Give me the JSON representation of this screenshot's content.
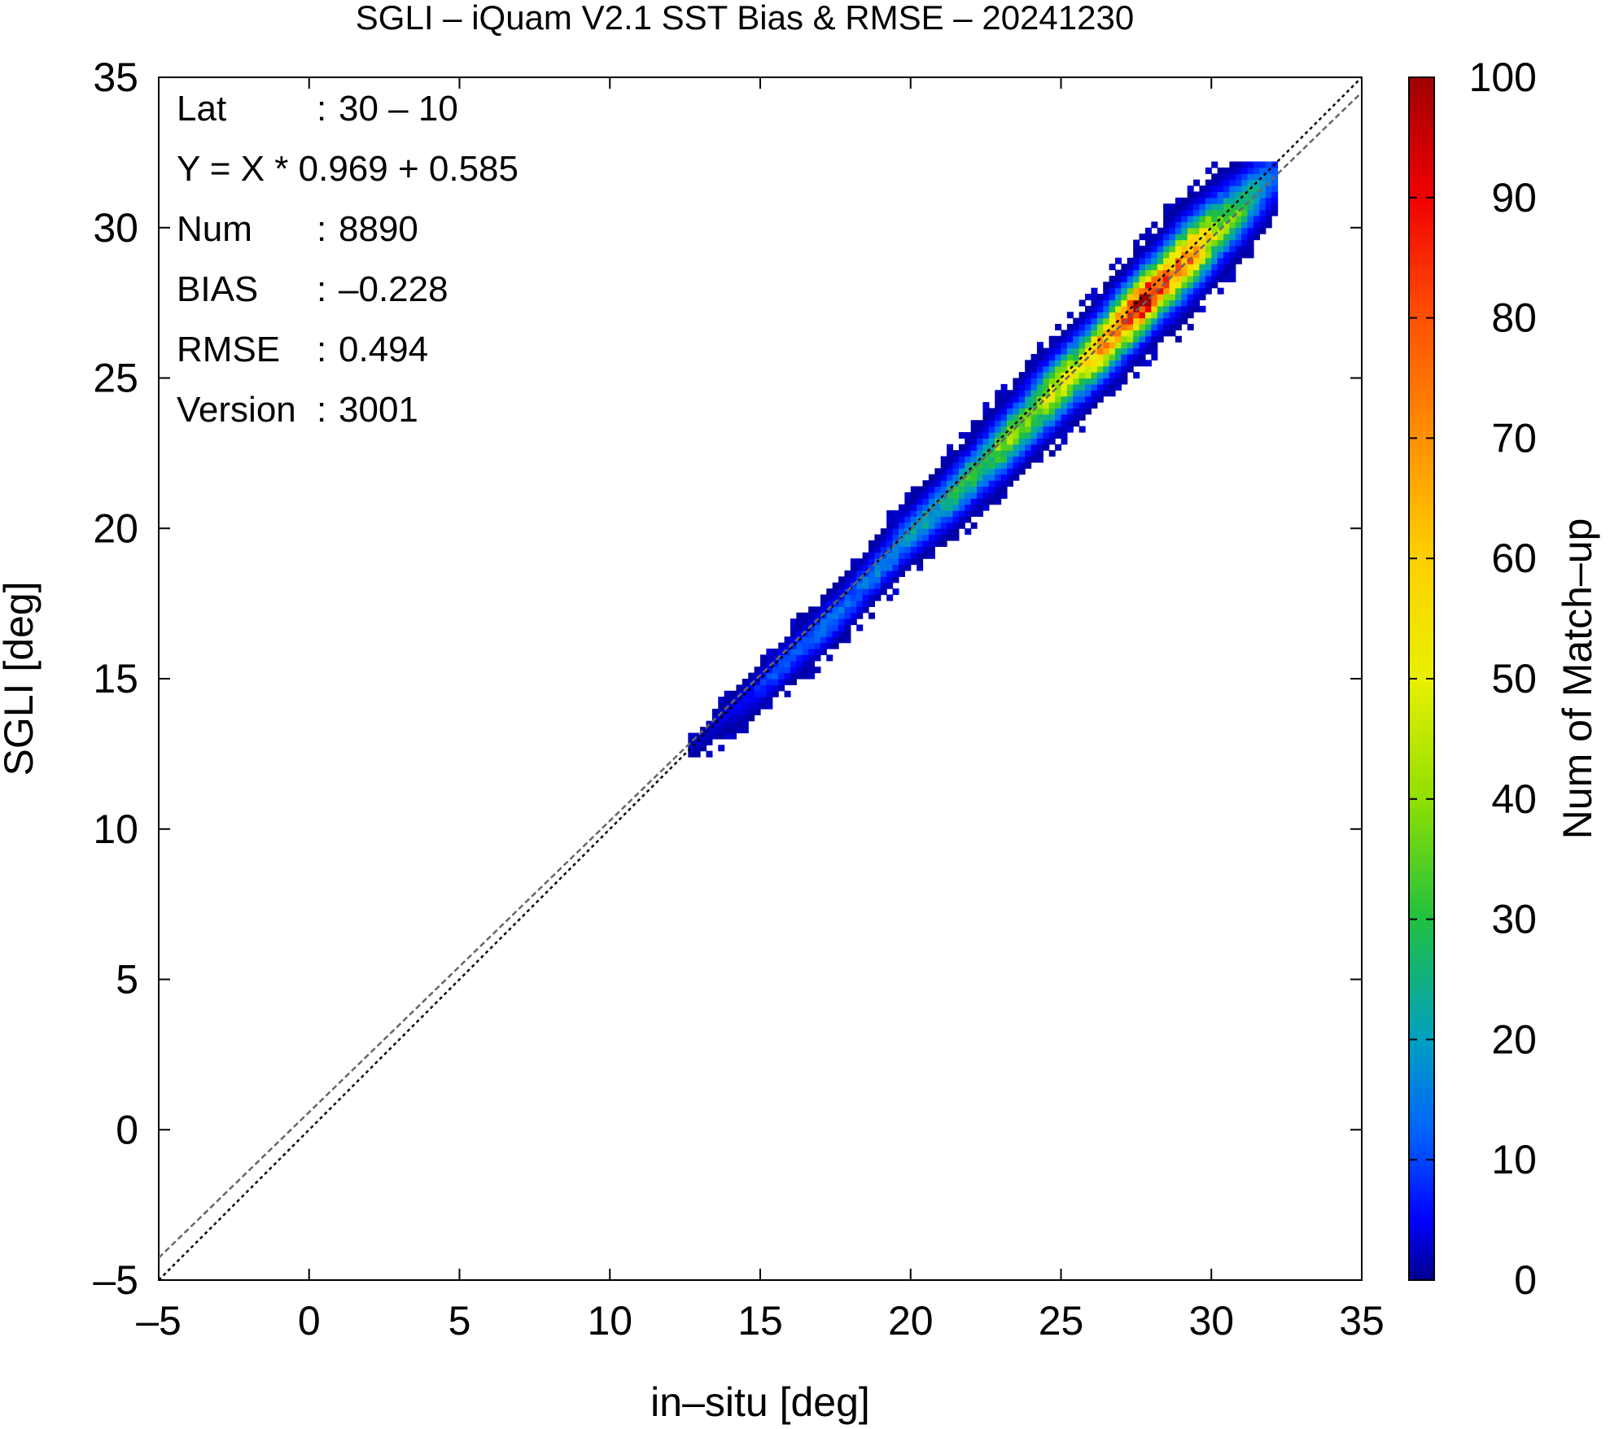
{
  "chart_data": {
    "type": "heatmap",
    "title": "SGLI – iQuam V2.1 SST Bias & RMSE  – 20241230",
    "xlabel": "in–situ [deg]",
    "ylabel": "SGLI [deg]",
    "xlim": [
      -5,
      35
    ],
    "ylim": [
      -5,
      35
    ],
    "xticks": [
      "–5",
      "0",
      "5",
      "10",
      "15",
      "20",
      "25",
      "30",
      "35"
    ],
    "yticks": [
      "–5",
      "0",
      "5",
      "10",
      "15",
      "20",
      "25",
      "30",
      "35"
    ],
    "xtick_values": [
      -5,
      0,
      5,
      10,
      15,
      20,
      25,
      30,
      35
    ],
    "ytick_values": [
      -5,
      0,
      5,
      10,
      15,
      20,
      25,
      30,
      35
    ],
    "grid": false,
    "colorbar": {
      "label": "Num of Match–up",
      "min": 0,
      "max": 100,
      "ticks": [
        "0",
        "10",
        "20",
        "30",
        "40",
        "50",
        "60",
        "70",
        "80",
        "90",
        "100"
      ],
      "tick_values": [
        0,
        10,
        20,
        30,
        40,
        50,
        60,
        70,
        80,
        90,
        100
      ]
    },
    "stats": [
      {
        "key": "Lat",
        "sep": ":",
        "value": "30 – 10"
      },
      {
        "key": "Y = X * 0.969 + 0.585",
        "sep": "",
        "value": ""
      },
      {
        "key": "Num",
        "sep": ":",
        "value": "8890"
      },
      {
        "key": "BIAS",
        "sep": ":",
        "value": "–0.228"
      },
      {
        "key": "RMSE",
        "sep": ":",
        "value": "0.494"
      },
      {
        "key": "Version",
        "sep": ":",
        "value": "3001"
      }
    ],
    "reference_lines": [
      {
        "type": "identity",
        "slope": 1.0,
        "intercept": 0.0,
        "color": "#000000",
        "style": "dotted"
      },
      {
        "type": "regression",
        "slope": 0.969,
        "intercept": 0.585,
        "color": "#666666",
        "style": "dashed"
      }
    ],
    "density_segments": [
      {
        "x": 13.0,
        "y": 13.0,
        "peak": 3,
        "spread": 0.15
      },
      {
        "x": 14.5,
        "y": 14.4,
        "peak": 5,
        "spread": 0.25
      },
      {
        "x": 16.0,
        "y": 15.7,
        "peak": 12,
        "spread": 0.35
      },
      {
        "x": 17.5,
        "y": 17.1,
        "peak": 14,
        "spread": 0.4
      },
      {
        "x": 19.0,
        "y": 18.7,
        "peak": 16,
        "spread": 0.4
      },
      {
        "x": 20.5,
        "y": 20.3,
        "peak": 22,
        "spread": 0.45
      },
      {
        "x": 22.0,
        "y": 21.7,
        "peak": 30,
        "spread": 0.5
      },
      {
        "x": 23.5,
        "y": 23.2,
        "peak": 42,
        "spread": 0.55
      },
      {
        "x": 25.0,
        "y": 24.8,
        "peak": 50,
        "spread": 0.6
      },
      {
        "x": 26.5,
        "y": 26.2,
        "peak": 68,
        "spread": 0.6
      },
      {
        "x": 27.7,
        "y": 27.5,
        "peak": 96,
        "spread": 0.6
      },
      {
        "x": 29.0,
        "y": 28.8,
        "peak": 75,
        "spread": 0.65
      },
      {
        "x": 30.3,
        "y": 30.0,
        "peak": 40,
        "spread": 0.6
      },
      {
        "x": 31.2,
        "y": 30.7,
        "peak": 15,
        "spread": 0.5
      }
    ]
  }
}
